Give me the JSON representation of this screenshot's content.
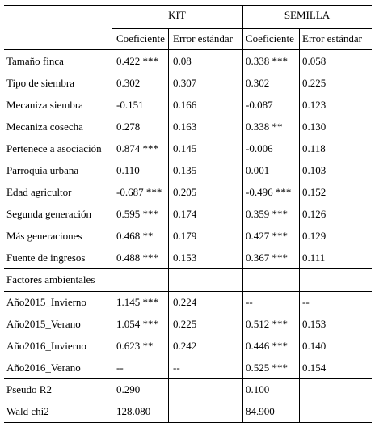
{
  "groups": {
    "kit": "KIT",
    "semilla": "SEMILLA"
  },
  "subheaders": {
    "coef": "Coeficiente",
    "se": "Error estándar"
  },
  "rows": [
    {
      "label": "Tamaño finca",
      "kit_coef": "0.422 ***",
      "kit_se": "0.08",
      "sem_coef": "0.338 ***",
      "sem_se": "0.058"
    },
    {
      "label": "Tipo de siembra",
      "kit_coef": "0.302",
      "kit_se": "0.307",
      "sem_coef": "0.302",
      "sem_se": "0.225"
    },
    {
      "label": "Mecaniza siembra",
      "kit_coef": "-0.151",
      "kit_se": "0.166",
      "sem_coef": "-0.087",
      "sem_se": "0.123"
    },
    {
      "label": "Mecaniza cosecha",
      "kit_coef": "0.278",
      "kit_se": "0.163",
      "sem_coef": "0.338 **",
      "sem_se": "0.130"
    },
    {
      "label": "Pertenece a asociación",
      "kit_coef": "0.874 ***",
      "kit_se": "0.145",
      "sem_coef": "-0.006",
      "sem_se": "0.118"
    },
    {
      "label": "Parroquia urbana",
      "kit_coef": "0.110",
      "kit_se": "0.135",
      "sem_coef": "0.001",
      "sem_se": "0.103"
    },
    {
      "label": "Edad agricultor",
      "kit_coef": "-0.687 ***",
      "kit_se": "0.205",
      "sem_coef": "-0.496 ***",
      "sem_se": "0.152"
    },
    {
      "label": "Segunda generación",
      "kit_coef": "0.595 ***",
      "kit_se": "0.174",
      "sem_coef": "0.359 ***",
      "sem_se": "0.126"
    },
    {
      "label": "Más generaciones",
      "kit_coef": "0.468 **",
      "kit_se": "0.179",
      "sem_coef": "0.427 ***",
      "sem_se": "0.129"
    },
    {
      "label": "Fuente de ingresos",
      "kit_coef": "0.488 ***",
      "kit_se": "0.153",
      "sem_coef": "0.367 ***",
      "sem_se": "0.111"
    }
  ],
  "section_label": "Factores ambientales",
  "env_rows": [
    {
      "label": "Año2015_Invierno",
      "kit_coef": "1.145 ***",
      "kit_se": "0.224",
      "sem_coef": "--",
      "sem_se": "--"
    },
    {
      "label": "Año2015_Verano",
      "kit_coef": "1.054 ***",
      "kit_se": "0.225",
      "sem_coef": "0.512 ***",
      "sem_se": "0.153"
    },
    {
      "label": "Año2016_Invierno",
      "kit_coef": "0.623 **",
      "kit_se": "0.242",
      "sem_coef": "0.446 ***",
      "sem_se": "0.140"
    },
    {
      "label": "Año2016_Verano",
      "kit_coef": "--",
      "kit_se": "--",
      "sem_coef": "0.525 ***",
      "sem_se": "0.154"
    }
  ],
  "fit_rows": [
    {
      "label": "Pseudo R2",
      "kit_coef": "0.290",
      "sem_coef": "0.100"
    },
    {
      "label": "Wald chi2",
      "kit_coef": "128.080",
      "sem_coef": "84.900"
    }
  ]
}
